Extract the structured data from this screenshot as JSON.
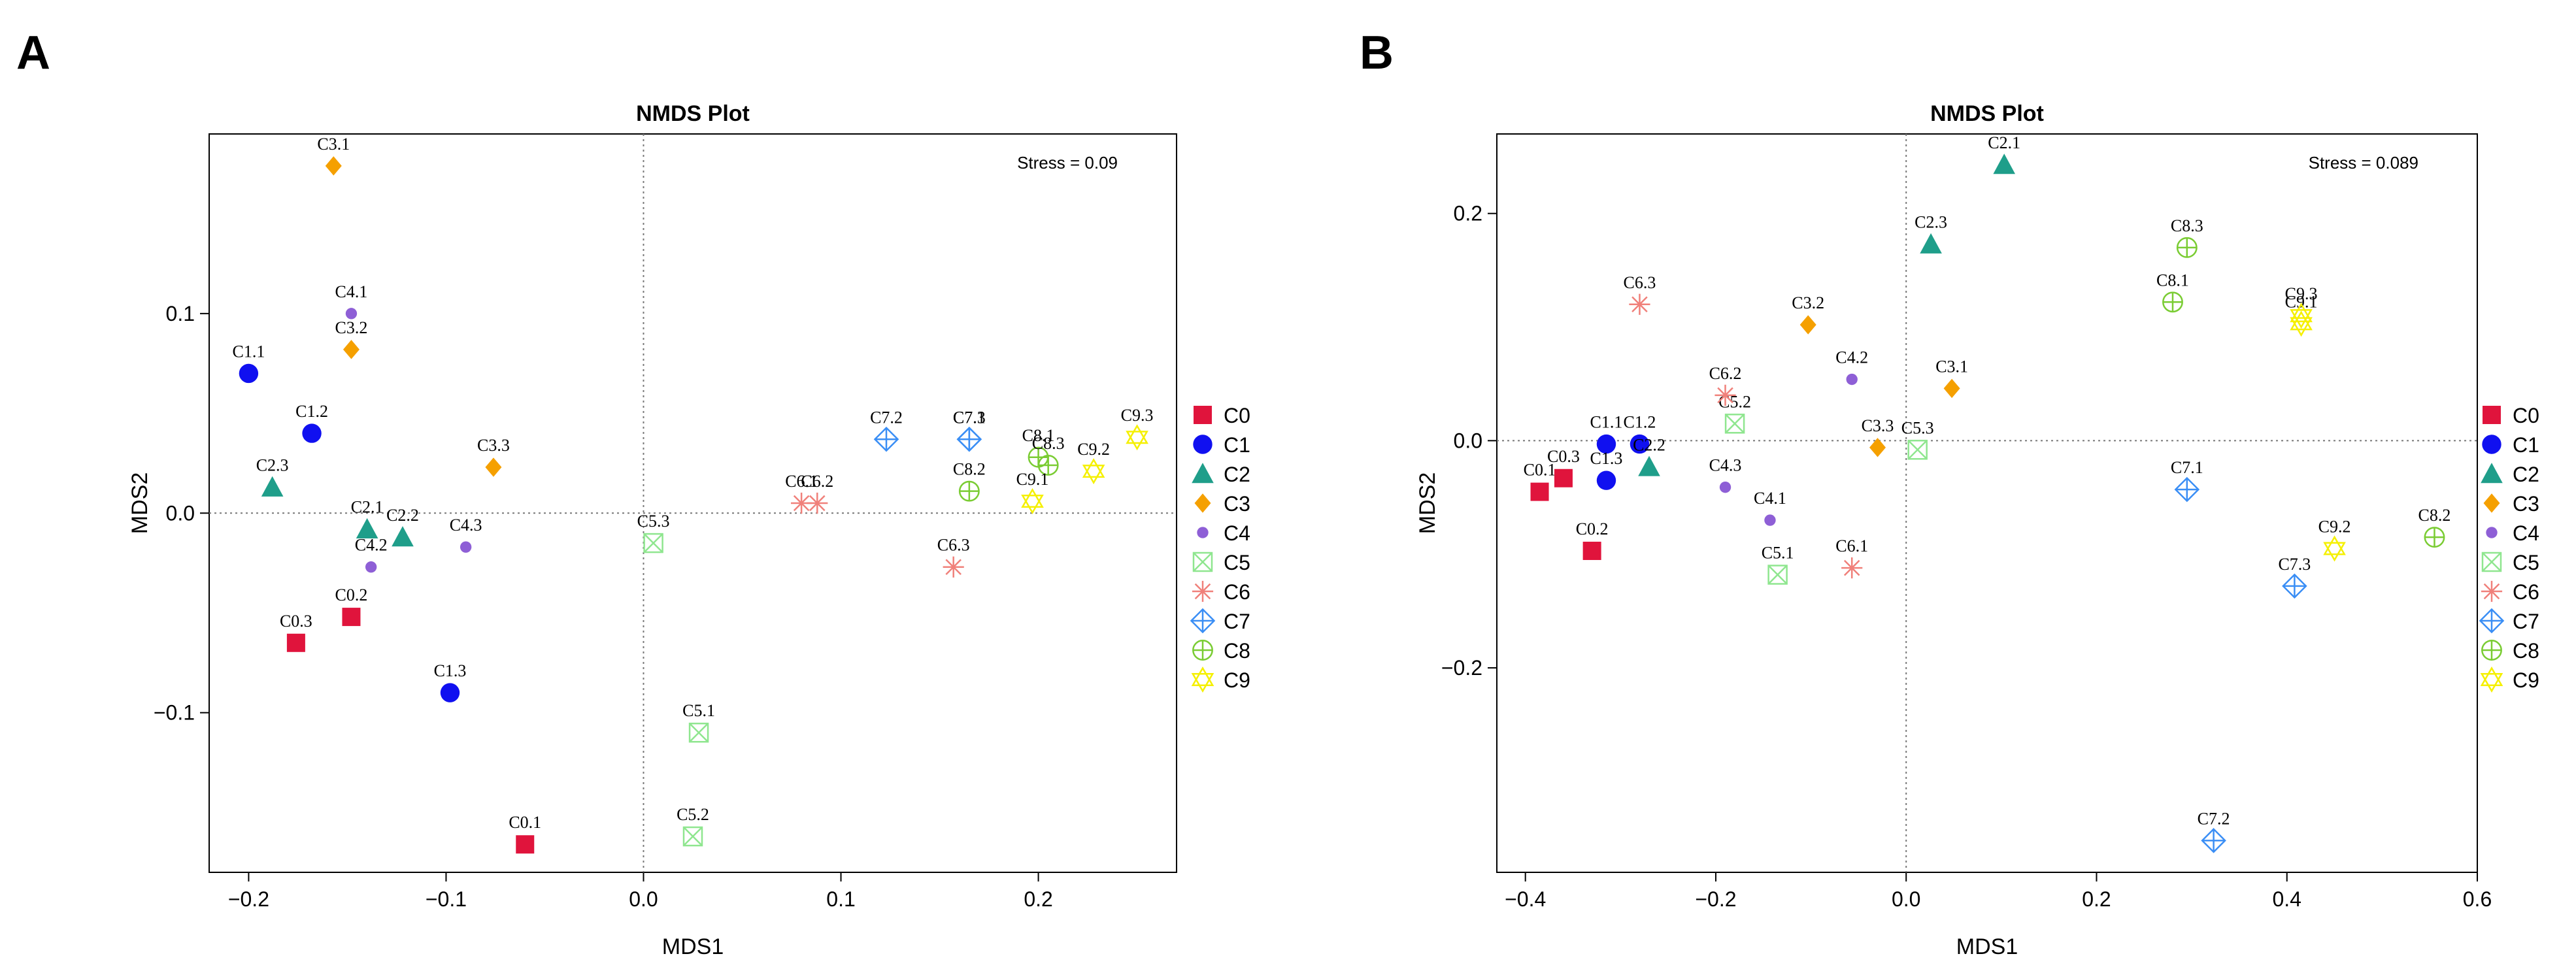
{
  "legend": [
    {
      "name": "C0",
      "color": "#e0143c",
      "shape": "square"
    },
    {
      "name": "C1",
      "color": "#1010f0",
      "shape": "circle"
    },
    {
      "name": "C2",
      "color": "#1f9e8a",
      "shape": "triangle"
    },
    {
      "name": "C3",
      "color": "#f5a000",
      "shape": "diamond"
    },
    {
      "name": "C4",
      "color": "#8e5fd6",
      "shape": "smallcircle"
    },
    {
      "name": "C5",
      "color": "#8fe68f",
      "shape": "squarex"
    },
    {
      "name": "C6",
      "color": "#f0807a",
      "shape": "asterisk"
    },
    {
      "name": "C7",
      "color": "#3a8ef5",
      "shape": "diamondplus"
    },
    {
      "name": "C8",
      "color": "#7acc33",
      "shape": "circleplus"
    },
    {
      "name": "C9",
      "color": "#f5f000",
      "shape": "star"
    }
  ],
  "chart_data": [
    {
      "type": "scatter",
      "panel_label": "A",
      "title": "NMDS Plot",
      "xlabel": "MDS1",
      "ylabel": "MDS2",
      "stress": "Stress = 0.09",
      "xlim": [
        -0.22,
        0.27
      ],
      "ylim": [
        -0.18,
        0.19
      ],
      "xticks": [
        -0.2,
        -0.1,
        0.0,
        0.1,
        0.2
      ],
      "xtick_labels": [
        "−0.2",
        "−0.1",
        "0.0",
        "0.1",
        "0.2"
      ],
      "yticks": [
        -0.1,
        0.0,
        0.1
      ],
      "ytick_labels": [
        "−0.1",
        "0.0",
        "0.1"
      ],
      "points": [
        {
          "label": "C0.1",
          "group": 0,
          "x": -0.06,
          "y": -0.166
        },
        {
          "label": "C0.2",
          "group": 0,
          "x": -0.148,
          "y": -0.052
        },
        {
          "label": "C0.3",
          "group": 0,
          "x": -0.176,
          "y": -0.065
        },
        {
          "label": "C1.1",
          "group": 1,
          "x": -0.2,
          "y": 0.07
        },
        {
          "label": "C1.2",
          "group": 1,
          "x": -0.168,
          "y": 0.04
        },
        {
          "label": "C1.3",
          "group": 1,
          "x": -0.098,
          "y": -0.09
        },
        {
          "label": "C2.1",
          "group": 2,
          "x": -0.14,
          "y": -0.008
        },
        {
          "label": "C2.2",
          "group": 2,
          "x": -0.122,
          "y": -0.012
        },
        {
          "label": "C2.3",
          "group": 2,
          "x": -0.188,
          "y": 0.013
        },
        {
          "label": "C3.1",
          "group": 3,
          "x": -0.157,
          "y": 0.174
        },
        {
          "label": "C3.2",
          "group": 3,
          "x": -0.148,
          "y": 0.082
        },
        {
          "label": "C3.3",
          "group": 3,
          "x": -0.076,
          "y": 0.023
        },
        {
          "label": "C4.1",
          "group": 4,
          "x": -0.148,
          "y": 0.1
        },
        {
          "label": "C4.2",
          "group": 4,
          "x": -0.138,
          "y": -0.027
        },
        {
          "label": "C4.3",
          "group": 4,
          "x": -0.09,
          "y": -0.017
        },
        {
          "label": "C5.1",
          "group": 5,
          "x": 0.028,
          "y": -0.11
        },
        {
          "label": "C5.2",
          "group": 5,
          "x": 0.025,
          "y": -0.162
        },
        {
          "label": "C5.3",
          "group": 5,
          "x": 0.005,
          "y": -0.015
        },
        {
          "label": "C6.1",
          "group": 6,
          "x": 0.08,
          "y": 0.005
        },
        {
          "label": "C6.2",
          "group": 6,
          "x": 0.088,
          "y": 0.005
        },
        {
          "label": "C6.3",
          "group": 6,
          "x": 0.157,
          "y": -0.027
        },
        {
          "label": "C7.1",
          "group": 7,
          "x": 0.165,
          "y": 0.037
        },
        {
          "label": "C7.2",
          "group": 7,
          "x": 0.123,
          "y": 0.037
        },
        {
          "label": "C7.3",
          "group": 7,
          "x": 0.165,
          "y": 0.037
        },
        {
          "label": "C8.1",
          "group": 8,
          "x": 0.2,
          "y": 0.028
        },
        {
          "label": "C8.2",
          "group": 8,
          "x": 0.165,
          "y": 0.011
        },
        {
          "label": "C8.3",
          "group": 8,
          "x": 0.205,
          "y": 0.024
        },
        {
          "label": "C9.1",
          "group": 9,
          "x": 0.197,
          "y": 0.006
        },
        {
          "label": "C9.2",
          "group": 9,
          "x": 0.228,
          "y": 0.021
        },
        {
          "label": "C9.3",
          "group": 9,
          "x": 0.25,
          "y": 0.038
        }
      ]
    },
    {
      "type": "scatter",
      "panel_label": "B",
      "title": "NMDS Plot",
      "xlabel": "MDS1",
      "ylabel": "MDS2",
      "stress": "Stress = 0.089",
      "xlim": [
        -0.43,
        0.6
      ],
      "ylim": [
        -0.38,
        0.27
      ],
      "xticks": [
        -0.4,
        -0.2,
        0.0,
        0.2,
        0.4,
        0.6
      ],
      "xtick_labels": [
        "−0.4",
        "−0.2",
        "0.0",
        "0.2",
        "0.4",
        "0.6"
      ],
      "yticks": [
        -0.2,
        0.0,
        0.2
      ],
      "ytick_labels": [
        "−0.2",
        "0.0",
        "0.2"
      ],
      "points": [
        {
          "label": "C0.1",
          "group": 0,
          "x": -0.385,
          "y": -0.045
        },
        {
          "label": "C0.2",
          "group": 0,
          "x": -0.33,
          "y": -0.097
        },
        {
          "label": "C0.3",
          "group": 0,
          "x": -0.36,
          "y": -0.033
        },
        {
          "label": "C1.1",
          "group": 1,
          "x": -0.315,
          "y": -0.003
        },
        {
          "label": "C1.2",
          "group": 1,
          "x": -0.28,
          "y": -0.003
        },
        {
          "label": "C1.3",
          "group": 1,
          "x": -0.315,
          "y": -0.035
        },
        {
          "label": "C2.1",
          "group": 2,
          "x": 0.103,
          "y": 0.243
        },
        {
          "label": "C2.2",
          "group": 2,
          "x": -0.27,
          "y": -0.023
        },
        {
          "label": "C2.3",
          "group": 2,
          "x": 0.026,
          "y": 0.173
        },
        {
          "label": "C3.1",
          "group": 3,
          "x": 0.048,
          "y": 0.046
        },
        {
          "label": "C3.2",
          "group": 3,
          "x": -0.103,
          "y": 0.102
        },
        {
          "label": "C3.3",
          "group": 3,
          "x": -0.03,
          "y": -0.006
        },
        {
          "label": "C4.1",
          "group": 4,
          "x": -0.143,
          "y": -0.07
        },
        {
          "label": "C4.2",
          "group": 4,
          "x": -0.057,
          "y": 0.054
        },
        {
          "label": "C4.3",
          "group": 4,
          "x": -0.19,
          "y": -0.041
        },
        {
          "label": "C5.1",
          "group": 5,
          "x": -0.135,
          "y": -0.118
        },
        {
          "label": "C5.2",
          "group": 5,
          "x": -0.18,
          "y": 0.015
        },
        {
          "label": "C5.3",
          "group": 5,
          "x": 0.012,
          "y": -0.008
        },
        {
          "label": "C6.1",
          "group": 6,
          "x": -0.057,
          "y": -0.112
        },
        {
          "label": "C6.2",
          "group": 6,
          "x": -0.19,
          "y": 0.04
        },
        {
          "label": "C6.3",
          "group": 6,
          "x": -0.28,
          "y": 0.12
        },
        {
          "label": "C7.1",
          "group": 7,
          "x": 0.295,
          "y": -0.043
        },
        {
          "label": "C7.2",
          "group": 7,
          "x": 0.323,
          "y": -0.352
        },
        {
          "label": "C7.3",
          "group": 7,
          "x": 0.408,
          "y": -0.128
        },
        {
          "label": "C8.1",
          "group": 8,
          "x": 0.28,
          "y": 0.122
        },
        {
          "label": "C8.2",
          "group": 8,
          "x": 0.555,
          "y": -0.085
        },
        {
          "label": "C8.3",
          "group": 8,
          "x": 0.295,
          "y": 0.17
        },
        {
          "label": "C9.1",
          "group": 9,
          "x": 0.415,
          "y": 0.103
        },
        {
          "label": "C9.2",
          "group": 9,
          "x": 0.45,
          "y": -0.095
        },
        {
          "label": "C9.3",
          "group": 9,
          "x": 0.415,
          "y": 0.11
        }
      ]
    }
  ]
}
